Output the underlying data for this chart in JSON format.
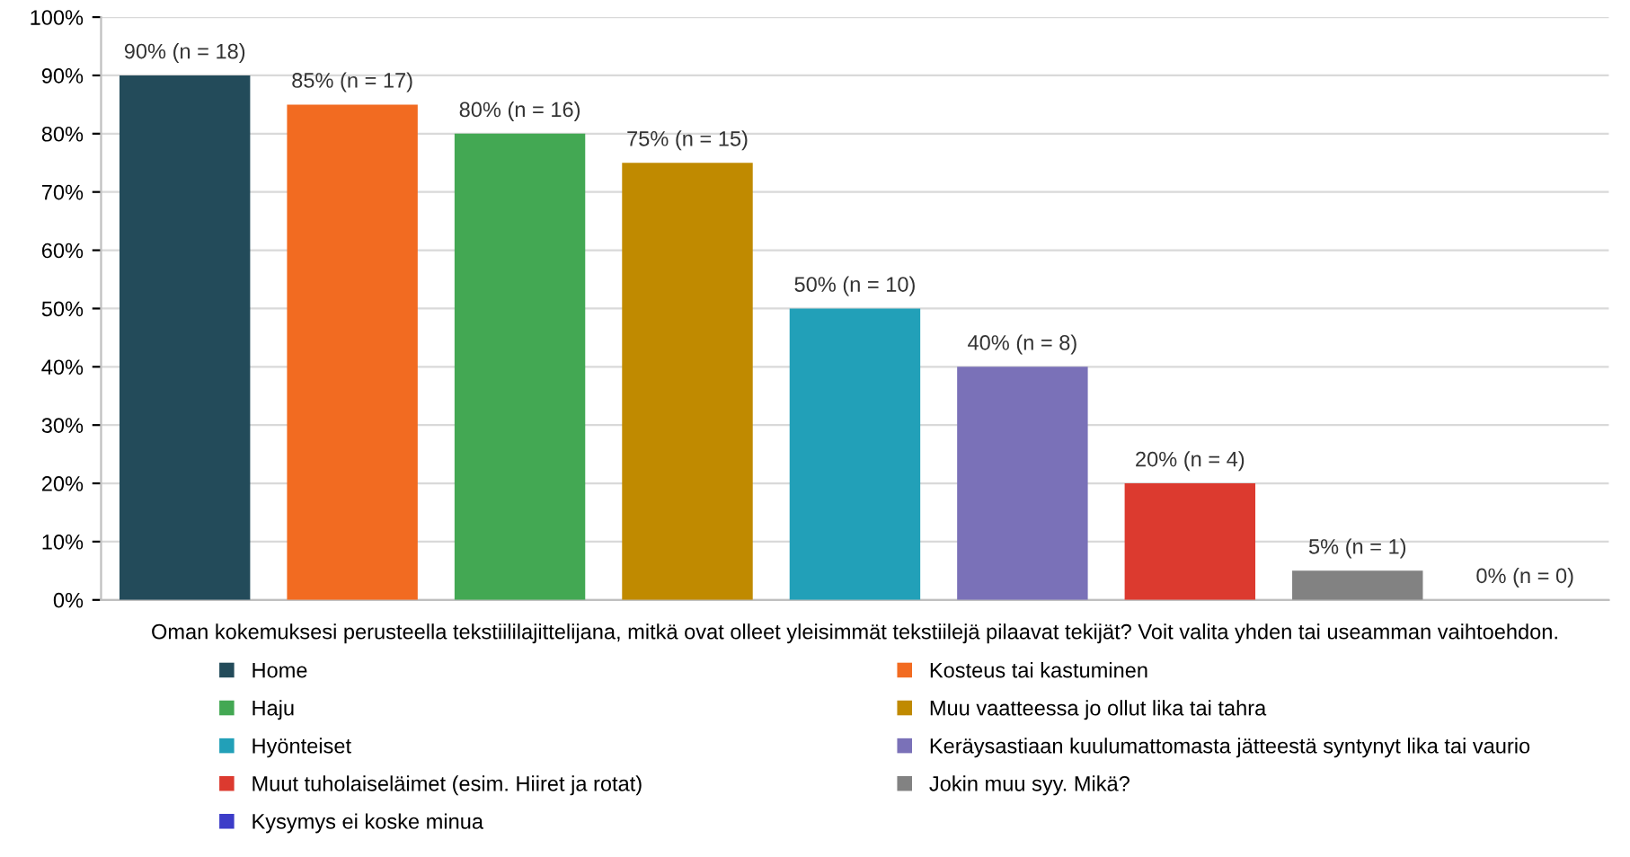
{
  "chart_data": {
    "type": "bar",
    "xlabel": "Oman kokemuksesi perusteella tekstiililajittelijana, mitkä ovat olleet yleisimmät tekstiilejä pilaavat tekijät? Voit valita yhden tai useamman vaihtoehdon.",
    "categories": [
      null,
      null,
      null,
      null,
      null,
      null,
      null,
      null,
      null
    ],
    "series": [
      {
        "name": "Home",
        "color": "#234b5a",
        "values": [
          90,
          null,
          null,
          null,
          null,
          null,
          null,
          null,
          null
        ],
        "value_labels": [
          "90% (n = 18)",
          null,
          null,
          null,
          null,
          null,
          null,
          null,
          null
        ]
      },
      {
        "name": "Kosteus tai kastuminen",
        "color": "#f26b21",
        "values": [
          null,
          85,
          null,
          null,
          null,
          null,
          null,
          null,
          null
        ],
        "value_labels": [
          null,
          "85% (n = 17)",
          null,
          null,
          null,
          null,
          null,
          null,
          null
        ]
      },
      {
        "name": "Haju",
        "color": "#43a853",
        "values": [
          null,
          null,
          80,
          null,
          null,
          null,
          null,
          null,
          null
        ],
        "value_labels": [
          null,
          null,
          "80% (n = 16)",
          null,
          null,
          null,
          null,
          null,
          null
        ]
      },
      {
        "name": "Muu vaatteessa jo ollut lika tai tahra",
        "color": "#c08a00",
        "values": [
          null,
          null,
          null,
          75,
          null,
          null,
          null,
          null,
          null
        ],
        "value_labels": [
          null,
          null,
          null,
          "75% (n = 15)",
          null,
          null,
          null,
          null,
          null
        ]
      },
      {
        "name": "Hyönteiset",
        "color": "#22a0b8",
        "values": [
          null,
          null,
          null,
          null,
          50,
          null,
          null,
          null,
          null
        ],
        "value_labels": [
          null,
          null,
          null,
          null,
          "50% (n = 10)",
          null,
          null,
          null,
          null
        ]
      },
      {
        "name": "Keräysastiaan kuulumattomasta jätteestä syntynyt lika tai vaurio",
        "color": "#7a71b8",
        "values": [
          null,
          null,
          null,
          null,
          null,
          40,
          null,
          null,
          null
        ],
        "value_labels": [
          null,
          null,
          null,
          null,
          null,
          "40% (n = 8)",
          null,
          null,
          null
        ]
      },
      {
        "name": "Muut tuholaiseläimet (esim. Hiiret ja rotat)",
        "color": "#dc3a2f",
        "values": [
          null,
          null,
          null,
          null,
          null,
          null,
          20,
          null,
          null
        ],
        "value_labels": [
          null,
          null,
          null,
          null,
          null,
          null,
          "20% (n = 4)",
          null,
          null
        ]
      },
      {
        "name": "Jokin muu syy. Mikä?",
        "color": "#828282",
        "values": [
          null,
          null,
          null,
          null,
          null,
          null,
          null,
          5,
          null
        ],
        "value_labels": [
          null,
          null,
          null,
          null,
          null,
          null,
          null,
          "5% (n = 1)",
          null
        ]
      },
      {
        "name": "Kysymys ei koske minua",
        "color": "#3c3cc8",
        "values": [
          null,
          null,
          null,
          null,
          null,
          null,
          null,
          null,
          0
        ],
        "value_labels": [
          null,
          null,
          null,
          null,
          null,
          null,
          null,
          null,
          "0% (n = 0)"
        ]
      }
    ],
    "ylim": [
      0,
      100
    ],
    "yticks": [
      {
        "value": 0,
        "label": "0%"
      },
      {
        "value": 10,
        "label": "10%"
      },
      {
        "value": 20,
        "label": "20%"
      },
      {
        "value": 30,
        "label": "30%"
      },
      {
        "value": 40,
        "label": "40%"
      },
      {
        "value": 50,
        "label": "50%"
      },
      {
        "value": 60,
        "label": "60%"
      },
      {
        "value": 70,
        "label": "70%"
      },
      {
        "value": 80,
        "label": "80%"
      },
      {
        "value": 90,
        "label": "90%"
      },
      {
        "value": 100,
        "label": "100%"
      }
    ],
    "grid": "y",
    "legend": "bottom"
  }
}
